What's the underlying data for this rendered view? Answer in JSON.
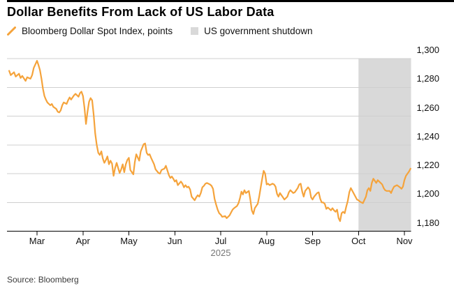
{
  "header": {
    "title": "Dollar Benefits From Lack of US Labor Data"
  },
  "legend": {
    "items": [
      {
        "label": "Bloomberg Dollar Spot Index, points",
        "marker": "line-segment",
        "color": "#F5A33B"
      },
      {
        "label": "US government shutdown",
        "marker": "square",
        "color": "#D9D9D9"
      }
    ]
  },
  "footer": {
    "source": "Source: Bloomberg"
  },
  "chart_data": {
    "type": "line",
    "title": "Dollar Benefits From Lack of US Labor Data",
    "ylabel": "",
    "xlabel": "",
    "ylim": [
      1180,
      1300
    ],
    "grid": "horizontal",
    "y_ticks": [
      {
        "value": 1300,
        "label": "1,300"
      },
      {
        "value": 1280,
        "label": "1,280"
      },
      {
        "value": 1260,
        "label": "1,260"
      },
      {
        "value": 1240,
        "label": "1,240"
      },
      {
        "value": 1220,
        "label": "1,220"
      },
      {
        "value": 1200,
        "label": "1,200"
      },
      {
        "value": 1180,
        "label": "1,180"
      }
    ],
    "x_ticks": [
      "Mar",
      "Apr",
      "May",
      "Jun",
      "Jul",
      "Aug",
      "Sep",
      "Oct",
      "Nov"
    ],
    "x_year_label": "2025",
    "shaded_region": {
      "label": "US government shutdown",
      "start": "2025-10-01",
      "end": "2025-11-05",
      "color": "#D9D9D9"
    },
    "series": [
      {
        "name": "Bloomberg Dollar Spot Index, points",
        "color": "#F5A33B",
        "points": [
          [
            "2025-02-12",
            1291.5
          ],
          [
            "2025-02-13",
            1288.5
          ],
          [
            "2025-02-15",
            1290.5
          ],
          [
            "2025-02-16",
            1287.5
          ],
          [
            "2025-02-18",
            1289.5
          ],
          [
            "2025-02-19",
            1286.5
          ],
          [
            "2025-02-20",
            1288
          ],
          [
            "2025-02-22",
            1284.5
          ],
          [
            "2025-02-23",
            1287
          ],
          [
            "2025-02-25",
            1286
          ],
          [
            "2025-02-26",
            1288.5
          ],
          [
            "2025-02-27",
            1293.5
          ],
          [
            "2025-03-01",
            1298.5
          ],
          [
            "2025-03-02",
            1295.5
          ],
          [
            "2025-03-03",
            1292
          ],
          [
            "2025-03-04",
            1286
          ],
          [
            "2025-03-05",
            1279
          ],
          [
            "2025-03-06",
            1274
          ],
          [
            "2025-03-07",
            1271.5
          ],
          [
            "2025-03-08",
            1269.5
          ],
          [
            "2025-03-10",
            1267.5
          ],
          [
            "2025-03-11",
            1268.5
          ],
          [
            "2025-03-12",
            1266.5
          ],
          [
            "2025-03-14",
            1265
          ],
          [
            "2025-03-15",
            1263
          ],
          [
            "2025-03-16",
            1262.5
          ],
          [
            "2025-03-17",
            1264
          ],
          [
            "2025-03-18",
            1267.5
          ],
          [
            "2025-03-19",
            1269.5
          ],
          [
            "2025-03-21",
            1268.5
          ],
          [
            "2025-03-22",
            1271
          ],
          [
            "2025-03-23",
            1273
          ],
          [
            "2025-03-24",
            1271.5
          ],
          [
            "2025-03-26",
            1274.5
          ],
          [
            "2025-03-27",
            1275.5
          ],
          [
            "2025-03-29",
            1273.5
          ],
          [
            "2025-03-30",
            1276
          ],
          [
            "2025-03-31",
            1277
          ],
          [
            "2025-04-01",
            1274
          ],
          [
            "2025-04-02",
            1266
          ],
          [
            "2025-04-03",
            1254.5
          ],
          [
            "2025-04-04",
            1263
          ],
          [
            "2025-04-05",
            1270
          ],
          [
            "2025-04-06",
            1272.5
          ],
          [
            "2025-04-07",
            1271
          ],
          [
            "2025-04-08",
            1261
          ],
          [
            "2025-04-09",
            1248
          ],
          [
            "2025-04-10",
            1240
          ],
          [
            "2025-04-11",
            1234.5
          ],
          [
            "2025-04-12",
            1233
          ],
          [
            "2025-04-13",
            1235.5
          ],
          [
            "2025-04-14",
            1230.5
          ],
          [
            "2025-04-15",
            1227.5
          ],
          [
            "2025-04-16",
            1229.5
          ],
          [
            "2025-04-17",
            1232
          ],
          [
            "2025-04-18",
            1226.5
          ],
          [
            "2025-04-19",
            1229
          ],
          [
            "2025-04-20",
            1227
          ],
          [
            "2025-04-21",
            1218.5
          ],
          [
            "2025-04-22",
            1224
          ],
          [
            "2025-04-23",
            1227.5
          ],
          [
            "2025-04-25",
            1220.5
          ],
          [
            "2025-04-26",
            1223
          ],
          [
            "2025-04-27",
            1226.5
          ],
          [
            "2025-04-28",
            1221
          ],
          [
            "2025-04-29",
            1226.5
          ],
          [
            "2025-04-30",
            1229.5
          ],
          [
            "2025-05-01",
            1231
          ],
          [
            "2025-05-02",
            1222.5
          ],
          [
            "2025-05-04",
            1219.5
          ],
          [
            "2025-05-05",
            1228
          ],
          [
            "2025-05-06",
            1233.5
          ],
          [
            "2025-05-08",
            1229
          ],
          [
            "2025-05-09",
            1235.5
          ],
          [
            "2025-05-11",
            1240.5
          ],
          [
            "2025-05-12",
            1241
          ],
          [
            "2025-05-13",
            1234.5
          ],
          [
            "2025-05-14",
            1233
          ],
          [
            "2025-05-15",
            1233.5
          ],
          [
            "2025-05-16",
            1231
          ],
          [
            "2025-05-18",
            1226.5
          ],
          [
            "2025-05-19",
            1223
          ],
          [
            "2025-05-21",
            1220.5
          ],
          [
            "2025-05-22",
            1220
          ],
          [
            "2025-05-23",
            1222.5
          ],
          [
            "2025-05-25",
            1223.5
          ],
          [
            "2025-05-26",
            1225.5
          ],
          [
            "2025-05-28",
            1219
          ],
          [
            "2025-05-29",
            1217
          ],
          [
            "2025-05-30",
            1218
          ],
          [
            "2025-05-31",
            1216.5
          ],
          [
            "2025-06-01",
            1214.5
          ],
          [
            "2025-06-02",
            1215.5
          ],
          [
            "2025-06-03",
            1212
          ],
          [
            "2025-06-05",
            1214.5
          ],
          [
            "2025-06-06",
            1213
          ],
          [
            "2025-06-07",
            1210.5
          ],
          [
            "2025-06-08",
            1212
          ],
          [
            "2025-06-09",
            1210.5
          ],
          [
            "2025-06-10",
            1211
          ],
          [
            "2025-06-11",
            1209
          ],
          [
            "2025-06-12",
            1204
          ],
          [
            "2025-06-14",
            1201.5
          ],
          [
            "2025-06-15",
            1203.5
          ],
          [
            "2025-06-16",
            1205
          ],
          [
            "2025-06-17",
            1204
          ],
          [
            "2025-06-18",
            1206.5
          ],
          [
            "2025-06-19",
            1210.5
          ],
          [
            "2025-06-20",
            1211.5
          ],
          [
            "2025-06-21",
            1213
          ],
          [
            "2025-06-22",
            1213.5
          ],
          [
            "2025-06-24",
            1212.5
          ],
          [
            "2025-06-25",
            1211.5
          ],
          [
            "2025-06-26",
            1209.5
          ],
          [
            "2025-06-27",
            1202.5
          ],
          [
            "2025-06-28",
            1198.5
          ],
          [
            "2025-06-29",
            1195
          ],
          [
            "2025-06-30",
            1192.5
          ],
          [
            "2025-07-01",
            1191.5
          ],
          [
            "2025-07-02",
            1190
          ],
          [
            "2025-07-04",
            1190.5
          ],
          [
            "2025-07-05",
            1189
          ],
          [
            "2025-07-07",
            1191
          ],
          [
            "2025-07-08",
            1193
          ],
          [
            "2025-07-09",
            1195
          ],
          [
            "2025-07-10",
            1196
          ],
          [
            "2025-07-12",
            1197.5
          ],
          [
            "2025-07-13",
            1199.5
          ],
          [
            "2025-07-14",
            1203
          ],
          [
            "2025-07-15",
            1207.5
          ],
          [
            "2025-07-16",
            1205.5
          ],
          [
            "2025-07-17",
            1208.5
          ],
          [
            "2025-07-18",
            1206.5
          ],
          [
            "2025-07-20",
            1208
          ],
          [
            "2025-07-21",
            1202
          ],
          [
            "2025-07-22",
            1194.5
          ],
          [
            "2025-07-23",
            1192
          ],
          [
            "2025-07-24",
            1196
          ],
          [
            "2025-07-26",
            1199
          ],
          [
            "2025-07-27",
            1204
          ],
          [
            "2025-07-28",
            1210.5
          ],
          [
            "2025-07-29",
            1216.5
          ],
          [
            "2025-07-30",
            1222
          ],
          [
            "2025-07-31",
            1220
          ],
          [
            "2025-08-01",
            1212.5
          ],
          [
            "2025-08-02",
            1213
          ],
          [
            "2025-08-03",
            1212
          ],
          [
            "2025-08-05",
            1213
          ],
          [
            "2025-08-06",
            1212.5
          ],
          [
            "2025-08-07",
            1211
          ],
          [
            "2025-08-08",
            1206
          ],
          [
            "2025-08-09",
            1204
          ],
          [
            "2025-08-10",
            1206.5
          ],
          [
            "2025-08-12",
            1203.5
          ],
          [
            "2025-08-13",
            1202
          ],
          [
            "2025-08-15",
            1204
          ],
          [
            "2025-08-16",
            1207
          ],
          [
            "2025-08-17",
            1208.5
          ],
          [
            "2025-08-19",
            1206.5
          ],
          [
            "2025-08-20",
            1207
          ],
          [
            "2025-08-22",
            1210
          ],
          [
            "2025-08-23",
            1212.5
          ],
          [
            "2025-08-24",
            1213
          ],
          [
            "2025-08-25",
            1207.5
          ],
          [
            "2025-08-26",
            1204
          ],
          [
            "2025-08-27",
            1208
          ],
          [
            "2025-08-29",
            1210.5
          ],
          [
            "2025-08-30",
            1209
          ],
          [
            "2025-08-31",
            1203.5
          ],
          [
            "2025-09-01",
            1202
          ],
          [
            "2025-09-02",
            1204
          ],
          [
            "2025-09-04",
            1206.5
          ],
          [
            "2025-09-05",
            1207
          ],
          [
            "2025-09-06",
            1202.5
          ],
          [
            "2025-09-07",
            1200
          ],
          [
            "2025-09-08",
            1200
          ],
          [
            "2025-09-09",
            1199
          ],
          [
            "2025-09-10",
            1195.5
          ],
          [
            "2025-09-11",
            1196.5
          ],
          [
            "2025-09-13",
            1194.5
          ],
          [
            "2025-09-14",
            1196
          ],
          [
            "2025-09-15",
            1194.5
          ],
          [
            "2025-09-16",
            1193.5
          ],
          [
            "2025-09-17",
            1195
          ],
          [
            "2025-09-18",
            1189
          ],
          [
            "2025-09-19",
            1187
          ],
          [
            "2025-09-20",
            1192.5
          ],
          [
            "2025-09-21",
            1193.5
          ],
          [
            "2025-09-22",
            1192.5
          ],
          [
            "2025-09-23",
            1197
          ],
          [
            "2025-09-24",
            1201
          ],
          [
            "2025-09-25",
            1207
          ],
          [
            "2025-09-26",
            1210
          ],
          [
            "2025-09-27",
            1208
          ],
          [
            "2025-09-29",
            1204
          ],
          [
            "2025-09-30",
            1202
          ],
          [
            "2025-10-01",
            1201.5
          ],
          [
            "2025-10-02",
            1200.5
          ],
          [
            "2025-10-03",
            1200
          ],
          [
            "2025-10-04",
            1199.5
          ],
          [
            "2025-10-06",
            1204
          ],
          [
            "2025-10-07",
            1208.5
          ],
          [
            "2025-10-08",
            1210
          ],
          [
            "2025-10-09",
            1208
          ],
          [
            "2025-10-10",
            1213.5
          ],
          [
            "2025-10-11",
            1216.5
          ],
          [
            "2025-10-12",
            1215
          ],
          [
            "2025-10-13",
            1213.5
          ],
          [
            "2025-10-14",
            1215.5
          ],
          [
            "2025-10-15",
            1214.5
          ],
          [
            "2025-10-16",
            1213.5
          ],
          [
            "2025-10-17",
            1212.5
          ],
          [
            "2025-10-18",
            1210
          ],
          [
            "2025-10-19",
            1208.5
          ],
          [
            "2025-10-20",
            1208
          ],
          [
            "2025-10-22",
            1208
          ],
          [
            "2025-10-23",
            1206.5
          ],
          [
            "2025-10-24",
            1209
          ],
          [
            "2025-10-25",
            1211
          ],
          [
            "2025-10-26",
            1211.5
          ],
          [
            "2025-10-27",
            1212
          ],
          [
            "2025-10-29",
            1210.5
          ],
          [
            "2025-10-30",
            1209.5
          ],
          [
            "2025-10-31",
            1211
          ],
          [
            "2025-11-01",
            1215.5
          ],
          [
            "2025-11-02",
            1218.5
          ],
          [
            "2025-11-03",
            1220
          ],
          [
            "2025-11-04",
            1221.5
          ],
          [
            "2025-11-05",
            1223.5
          ]
        ]
      }
    ],
    "style": {
      "line_color": "#F5A33B",
      "band_color": "#D9D9D9",
      "grid_color": "#CFCFCF",
      "axis_color": "#000000"
    }
  }
}
